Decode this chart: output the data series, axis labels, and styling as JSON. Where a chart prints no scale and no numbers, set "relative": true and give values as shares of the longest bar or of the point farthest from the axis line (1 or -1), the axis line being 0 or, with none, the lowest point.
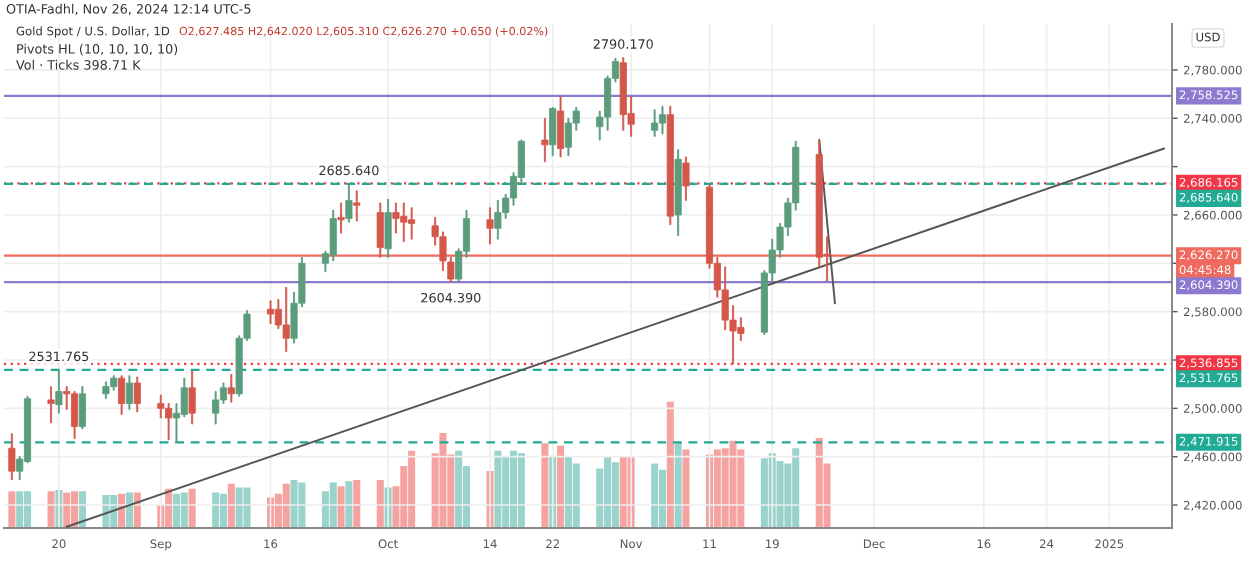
{
  "chart_data": [
    {
      "type": "candlestick",
      "title": "Gold Spot / U.S. Dollar, 1D",
      "subtitle": "O2,627.485 H2,642.020 L2,605.310 C2,626.270 +0.650 (+0.02%)",
      "ylabel": "USD",
      "x": [
        "2024-08-14",
        "2024-08-15",
        "2024-08-16",
        "2024-08-19",
        "2024-08-20",
        "2024-08-21",
        "2024-08-22",
        "2024-08-23",
        "2024-08-26",
        "2024-08-27",
        "2024-08-28",
        "2024-08-29",
        "2024-08-30",
        "2024-09-02",
        "2024-09-03",
        "2024-09-04",
        "2024-09-05",
        "2024-09-06",
        "2024-09-09",
        "2024-09-10",
        "2024-09-11",
        "2024-09-12",
        "2024-09-13",
        "2024-09-16",
        "2024-09-17",
        "2024-09-18",
        "2024-09-19",
        "2024-09-20",
        "2024-09-23",
        "2024-09-24",
        "2024-09-25",
        "2024-09-26",
        "2024-09-27",
        "2024-09-30",
        "2024-10-01",
        "2024-10-02",
        "2024-10-03",
        "2024-10-04",
        "2024-10-07",
        "2024-10-08",
        "2024-10-09",
        "2024-10-10",
        "2024-10-11",
        "2024-10-14",
        "2024-10-15",
        "2024-10-16",
        "2024-10-17",
        "2024-10-18",
        "2024-10-21",
        "2024-10-22",
        "2024-10-23",
        "2024-10-24",
        "2024-10-25",
        "2024-10-28",
        "2024-10-29",
        "2024-10-30",
        "2024-10-31",
        "2024-11-01",
        "2024-11-04",
        "2024-11-05",
        "2024-11-06",
        "2024-11-07",
        "2024-11-08",
        "2024-11-11",
        "2024-11-12",
        "2024-11-13",
        "2024-11-14",
        "2024-11-15",
        "2024-11-18",
        "2024-11-19",
        "2024-11-20",
        "2024-11-21",
        "2024-11-22",
        "2024-11-25",
        "2024-11-26"
      ],
      "ohlc": [
        [
          2467,
          2479,
          2441,
          2448
        ],
        [
          2448,
          2460,
          2441,
          2458
        ],
        [
          2456,
          2510,
          2455,
          2508
        ],
        [
          2507,
          2518,
          2488,
          2504
        ],
        [
          2503,
          2531.765,
          2496,
          2514
        ],
        [
          2514,
          2518,
          2499,
          2512
        ],
        [
          2512,
          2514,
          2475,
          2485
        ],
        [
          2485,
          2518,
          2483,
          2512
        ],
        [
          2512,
          2522,
          2508,
          2518
        ],
        [
          2518,
          2527,
          2515,
          2525
        ],
        [
          2525,
          2527,
          2495,
          2504
        ],
        [
          2504,
          2527,
          2499,
          2521
        ],
        [
          2521,
          2526,
          2497,
          2504
        ],
        [
          2504,
          2511,
          2492,
          2500
        ],
        [
          2500,
          2504,
          2474,
          2492
        ],
        [
          2492,
          2504,
          2471.915,
          2496
        ],
        [
          2495,
          2525,
          2493,
          2517
        ],
        [
          2517,
          2531,
          2487,
          2496
        ],
        [
          2496,
          2514,
          2487,
          2507
        ],
        [
          2507,
          2521,
          2504,
          2517
        ],
        [
          2517,
          2528,
          2505,
          2512
        ],
        [
          2512,
          2560,
          2510,
          2558
        ],
        [
          2558,
          2581,
          2556,
          2578
        ],
        [
          2582,
          2589,
          2570,
          2578
        ],
        [
          2582,
          2590,
          2566,
          2569
        ],
        [
          2569,
          2600,
          2547,
          2558
        ],
        [
          2558,
          2596,
          2554,
          2587
        ],
        [
          2587,
          2625,
          2584,
          2620
        ],
        [
          2620,
          2630,
          2613,
          2628
        ],
        [
          2627,
          2664,
          2622,
          2657
        ],
        [
          2658,
          2670,
          2645,
          2656
        ],
        [
          2657,
          2685.64,
          2654,
          2672
        ],
        [
          2670,
          2680,
          2655,
          2668
        ],
        [
          2662,
          2670,
          2625,
          2633
        ],
        [
          2632,
          2673,
          2625,
          2662
        ],
        [
          2662,
          2670,
          2645,
          2657
        ],
        [
          2659,
          2670,
          2638,
          2654
        ],
        [
          2656,
          2666,
          2640,
          2653
        ],
        [
          2651,
          2658,
          2635,
          2642
        ],
        [
          2642,
          2646,
          2614,
          2622
        ],
        [
          2621,
          2625,
          2604.39,
          2607
        ],
        [
          2607,
          2632,
          2605,
          2630
        ],
        [
          2630,
          2664,
          2625,
          2657
        ],
        [
          2656,
          2666,
          2636,
          2649
        ],
        [
          2649,
          2672,
          2640,
          2662
        ],
        [
          2662,
          2677,
          2657,
          2674
        ],
        [
          2674,
          2695,
          2668,
          2692
        ],
        [
          2691,
          2722,
          2686,
          2721
        ],
        [
          2722,
          2740,
          2704,
          2718
        ],
        [
          2718,
          2749,
          2709,
          2748
        ],
        [
          2746,
          2758.525,
          2708,
          2715
        ],
        [
          2716,
          2740,
          2709,
          2736
        ],
        [
          2736,
          2749,
          2730,
          2746
        ],
        [
          2733,
          2746,
          2722,
          2741
        ],
        [
          2741,
          2775,
          2730,
          2773
        ],
        [
          2773,
          2789.5,
          2770,
          2787
        ],
        [
          2786,
          2790.17,
          2730,
          2743
        ],
        [
          2744,
          2758,
          2725,
          2735
        ],
        [
          2730,
          2747,
          2725,
          2736
        ],
        [
          2736,
          2750,
          2727,
          2743
        ],
        [
          2743,
          2750,
          2652,
          2659
        ],
        [
          2660,
          2714,
          2643,
          2706
        ],
        [
          2703,
          2708,
          2672,
          2684
        ],
        [
          2683,
          2685,
          2616,
          2620
        ],
        [
          2620,
          2625,
          2592,
          2598
        ],
        [
          2598,
          2617,
          2565,
          2573
        ],
        [
          2573,
          2585,
          2536.855,
          2564
        ],
        [
          2567,
          2575,
          2556,
          2562
        ],
        [
          2563,
          2614,
          2561,
          2612
        ],
        [
          2612,
          2640,
          2605,
          2631
        ],
        [
          2631,
          2653,
          2625,
          2650
        ],
        [
          2650,
          2674,
          2643,
          2670
        ],
        [
          2670,
          2721,
          2664,
          2716
        ],
        [
          2710,
          2721.6,
          2617,
          2625
        ],
        [
          2627.485,
          2642.02,
          2605.31,
          2626.27
        ]
      ],
      "colors": [
        "#d4574a",
        "#5b9c7d",
        "#5b9c7d",
        "#d4574a",
        "#5b9c7d",
        "#d4574a",
        "#d4574a",
        "#5b9c7d",
        "#5b9c7d",
        "#5b9c7d",
        "#d4574a",
        "#5b9c7d",
        "#d4574a",
        "#d4574a",
        "#d4574a",
        "#5b9c7d",
        "#5b9c7d",
        "#d4574a",
        "#5b9c7d",
        "#5b9c7d",
        "#d4574a",
        "#5b9c7d",
        "#5b9c7d",
        "#d4574a",
        "#d4574a",
        "#d4574a",
        "#5b9c7d",
        "#5b9c7d",
        "#5b9c7d",
        "#5b9c7d",
        "#d4574a",
        "#5b9c7d",
        "#d4574a",
        "#d4574a",
        "#5b9c7d",
        "#d4574a",
        "#d4574a",
        "#d4574a",
        "#d4574a",
        "#d4574a",
        "#d4574a",
        "#5b9c7d",
        "#5b9c7d",
        "#d4574a",
        "#5b9c7d",
        "#5b9c7d",
        "#5b9c7d",
        "#5b9c7d",
        "#d4574a",
        "#5b9c7d",
        "#d4574a",
        "#5b9c7d",
        "#5b9c7d",
        "#5b9c7d",
        "#5b9c7d",
        "#5b9c7d",
        "#d4574a",
        "#d4574a",
        "#5b9c7d",
        "#5b9c7d",
        "#d4574a",
        "#5b9c7d",
        "#d4574a",
        "#d4574a",
        "#d4574a",
        "#d4574a",
        "#d4574a",
        "#d4574a",
        "#5b9c7d",
        "#5b9c7d",
        "#5b9c7d",
        "#5b9c7d",
        "#5b9c7d",
        "#d4574a",
        "#d4574a"
      ],
      "series": [
        {
          "type": "line",
          "color": "#555555",
          "x": [
            "2024-08-21",
            "2025-01-08"
          ],
          "values": [
            2402,
            2715
          ]
        },
        {
          "type": "line",
          "color": "#555555",
          "x": [
            "2024-11-25",
            "2024-11-27"
          ],
          "values": [
            2722,
            2587
          ]
        }
      ],
      "ref_lines": [
        {
          "axis": "y",
          "value": 2758.525,
          "label": "2,758.525",
          "color": "#8c7ad0",
          "line_style": "solid"
        },
        {
          "axis": "y",
          "value": 2686.165,
          "label": "2,686.165",
          "color": "#f23645",
          "line_style": "dotted"
        },
        {
          "axis": "y",
          "value": 2685.64,
          "label": "2,685.640",
          "color": "#22ab94",
          "line_style": "dashed"
        },
        {
          "axis": "y",
          "value": 2626.27,
          "label": "2,626.270",
          "color": "#ef6a5f",
          "line_style": "solid"
        },
        {
          "axis": "y",
          "value": 2604.39,
          "label": "2,604.390",
          "color": "#8c7ad0",
          "line_style": "solid"
        },
        {
          "axis": "y",
          "value": 2536.855,
          "label": "2,536.855",
          "color": "#f23645",
          "line_style": "dotted"
        },
        {
          "axis": "y",
          "value": 2531.765,
          "label": "2,531.765",
          "color": "#22ab94",
          "line_style": "dashed"
        },
        {
          "axis": "y",
          "value": 2471.915,
          "label": "2,471.915",
          "color": "#22ab94",
          "line_style": "dashed"
        }
      ],
      "annotations": [
        "OTIA-Fadhl, Nov 26, 2024 12:14 UTC-5",
        "Pivots HL (10, 10, 10, 10)",
        "Vol · Ticks 398.71 K",
        {
          "text": "04:45:48",
          "x": "2025-01-09",
          "y": 2626.27
        },
        {
          "text": "2790.170",
          "x": "2024-10-31",
          "y": 2790.17
        },
        {
          "text": "2685.640",
          "x": "2024-09-26",
          "y": 2685.64
        },
        {
          "text": "2604.390",
          "x": "2024-10-09",
          "y": 2604.39
        },
        {
          "text": "2531.765",
          "x": "2024-08-20",
          "y": 2531.765
        }
      ],
      "xlim": [
        "2024-08-13",
        "2025-01-09"
      ],
      "xticks": [
        {
          "value": "2024-08-20",
          "label": "20"
        },
        {
          "value": "2024-09-02",
          "label": "Sep"
        },
        {
          "value": "2024-09-16",
          "label": "16"
        },
        {
          "value": "2024-10-01",
          "label": "Oct"
        },
        {
          "value": "2024-10-14",
          "label": "14"
        },
        {
          "value": "2024-10-22",
          "label": "22"
        },
        {
          "value": "2024-11-01",
          "label": "Nov"
        },
        {
          "value": "2024-11-11",
          "label": "11"
        },
        {
          "value": "2024-11-19",
          "label": "19"
        },
        {
          "value": "2024-12-02",
          "label": "Dec"
        },
        {
          "value": "2024-12-16",
          "label": "16"
        },
        {
          "value": "2024-12-24",
          "label": "24"
        },
        {
          "value": "2025-01-01",
          "label": "2025"
        }
      ],
      "ylim": [
        2401,
        2818
      ],
      "yticks": [
        {
          "value": 2420,
          "label": "2,420.000"
        },
        {
          "value": 2460,
          "label": "2,460.000"
        },
        {
          "value": 2500,
          "label": "2,500.000"
        },
        {
          "value": 2540,
          "label": null
        },
        {
          "value": 2580,
          "label": "2,580.000"
        },
        {
          "value": 2620,
          "label": null
        },
        {
          "value": 2660,
          "label": "2,660.000"
        },
        {
          "value": 2700,
          "label": null
        },
        {
          "value": 2740,
          "label": "2,740.000"
        },
        {
          "value": 2780,
          "label": "2,780.000"
        }
      ],
      "grid": true
    },
    {
      "type": "bar",
      "relative": true,
      "tick_labels": false,
      "x": [
        "2024-08-14",
        "2024-08-15",
        "2024-08-16",
        "2024-08-19",
        "2024-08-20",
        "2024-08-21",
        "2024-08-22",
        "2024-08-23",
        "2024-08-26",
        "2024-08-27",
        "2024-08-28",
        "2024-08-29",
        "2024-08-30",
        "2024-09-02",
        "2024-09-03",
        "2024-09-04",
        "2024-09-05",
        "2024-09-06",
        "2024-09-09",
        "2024-09-10",
        "2024-09-11",
        "2024-09-12",
        "2024-09-13",
        "2024-09-16",
        "2024-09-17",
        "2024-09-18",
        "2024-09-19",
        "2024-09-20",
        "2024-09-23",
        "2024-09-24",
        "2024-09-25",
        "2024-09-26",
        "2024-09-27",
        "2024-09-30",
        "2024-10-01",
        "2024-10-02",
        "2024-10-03",
        "2024-10-04",
        "2024-10-07",
        "2024-10-08",
        "2024-10-09",
        "2024-10-10",
        "2024-10-11",
        "2024-10-14",
        "2024-10-15",
        "2024-10-16",
        "2024-10-17",
        "2024-10-18",
        "2024-10-21",
        "2024-10-22",
        "2024-10-23",
        "2024-10-24",
        "2024-10-25",
        "2024-10-28",
        "2024-10-29",
        "2024-10-30",
        "2024-10-31",
        "2024-11-01",
        "2024-11-04",
        "2024-11-05",
        "2024-11-06",
        "2024-11-07",
        "2024-11-08",
        "2024-11-11",
        "2024-11-12",
        "2024-11-13",
        "2024-11-14",
        "2024-11-15",
        "2024-11-18",
        "2024-11-19",
        "2024-11-20",
        "2024-11-21",
        "2024-11-22",
        "2024-11-25",
        "2024-11-26"
      ],
      "xlim": [
        "2024-08-13",
        "2025-01-09"
      ],
      "values": [
        0.29,
        0.29,
        0.29,
        0.29,
        0.3,
        0.28,
        0.29,
        0.29,
        0.26,
        0.26,
        0.27,
        0.28,
        0.28,
        0.18,
        0.31,
        0.27,
        0.28,
        0.31,
        0.28,
        0.27,
        0.35,
        0.32,
        0.32,
        0.24,
        0.27,
        0.35,
        0.38,
        0.36,
        0.29,
        0.36,
        0.33,
        0.37,
        0.38,
        0.38,
        0.32,
        0.33,
        0.49,
        0.61,
        0.59,
        0.75,
        0.58,
        0.61,
        0.49,
        0.45,
        0.61,
        0.56,
        0.61,
        0.59,
        0.67,
        0.57,
        0.65,
        0.56,
        0.51,
        0.47,
        0.56,
        0.52,
        0.56,
        0.56,
        0.51,
        0.46,
        1,
        0.68,
        0.62,
        0.58,
        0.62,
        0.63,
        0.69,
        0.62,
        0.55,
        0.59,
        0.53,
        0.51,
        0.63,
        0.71,
        0.51
      ],
      "colors": [
        "#f5a3a0",
        "#99d3cb",
        "#99d3cb",
        "#f5a3a0",
        "#99d3cb",
        "#f5a3a0",
        "#f5a3a0",
        "#99d3cb",
        "#99d3cb",
        "#99d3cb",
        "#f5a3a0",
        "#99d3cb",
        "#f5a3a0",
        "#f5a3a0",
        "#f5a3a0",
        "#99d3cb",
        "#99d3cb",
        "#f5a3a0",
        "#99d3cb",
        "#99d3cb",
        "#f5a3a0",
        "#99d3cb",
        "#99d3cb",
        "#f5a3a0",
        "#f5a3a0",
        "#f5a3a0",
        "#99d3cb",
        "#99d3cb",
        "#99d3cb",
        "#99d3cb",
        "#f5a3a0",
        "#99d3cb",
        "#f5a3a0",
        "#f5a3a0",
        "#99d3cb",
        "#f5a3a0",
        "#f5a3a0",
        "#f5a3a0",
        "#f5a3a0",
        "#f5a3a0",
        "#f5a3a0",
        "#99d3cb",
        "#99d3cb",
        "#f5a3a0",
        "#99d3cb",
        "#99d3cb",
        "#99d3cb",
        "#99d3cb",
        "#f5a3a0",
        "#99d3cb",
        "#f5a3a0",
        "#99d3cb",
        "#99d3cb",
        "#99d3cb",
        "#99d3cb",
        "#99d3cb",
        "#f5a3a0",
        "#f5a3a0",
        "#99d3cb",
        "#99d3cb",
        "#f5a3a0",
        "#99d3cb",
        "#f5a3a0",
        "#f5a3a0",
        "#f5a3a0",
        "#f5a3a0",
        "#f5a3a0",
        "#f5a3a0",
        "#99d3cb",
        "#99d3cb",
        "#99d3cb",
        "#99d3cb",
        "#99d3cb",
        "#f5a3a0",
        "#f5a3a0"
      ]
    }
  ]
}
